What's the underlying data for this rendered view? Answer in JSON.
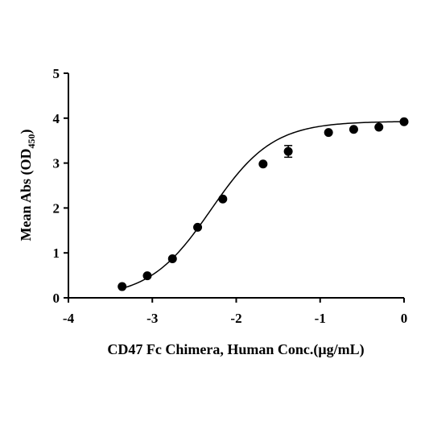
{
  "chart_data": {
    "type": "scatter",
    "xlabel": "CD47 Fc Chimera, Human Conc.(μg/mL)",
    "ylabel": {
      "main": "Mean Abs (OD",
      "subscript": "450",
      "close": ")"
    },
    "xlim": [
      -4,
      0
    ],
    "ylim": [
      0,
      5
    ],
    "x_ticks": [
      -4,
      -3,
      -2,
      -1,
      0
    ],
    "y_ticks": [
      0,
      1,
      2,
      3,
      4,
      5
    ],
    "x_tick_labels": [
      "-4",
      "-3",
      "-2",
      "-1",
      "0"
    ],
    "y_tick_labels": [
      "0",
      "1",
      "2",
      "3",
      "4",
      "5"
    ],
    "grid": false,
    "series": [
      {
        "points": [
          {
            "x": -3.36,
            "y": 0.25
          },
          {
            "x": -3.06,
            "y": 0.49
          },
          {
            "x": -2.76,
            "y": 0.87
          },
          {
            "x": -2.46,
            "y": 1.57
          },
          {
            "x": -2.16,
            "y": 2.2
          },
          {
            "x": -1.68,
            "y": 2.98
          },
          {
            "x": -1.38,
            "y": 3.26,
            "err": 0.13
          },
          {
            "x": -0.9,
            "y": 3.68
          },
          {
            "x": -0.6,
            "y": 3.75
          },
          {
            "x": -0.3,
            "y": 3.8
          },
          {
            "x": 0.0,
            "y": 3.92
          }
        ],
        "fit": {
          "model": "four-parameter logistic",
          "bottom": 0.0,
          "top": 3.93,
          "log_ec50": -2.3,
          "hill_slope": 1.18
        },
        "color": "#000000"
      }
    ]
  }
}
